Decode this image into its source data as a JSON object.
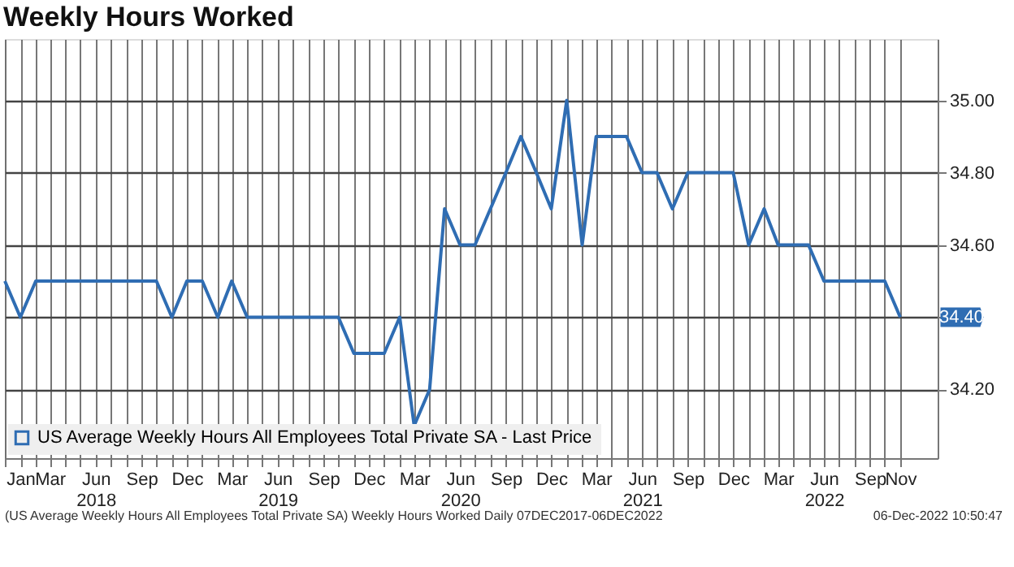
{
  "chart_data": {
    "type": "line",
    "title": "Weekly Hours Worked",
    "x": [
      "2017-12",
      "2018-01",
      "2018-02",
      "2018-03",
      "2018-04",
      "2018-05",
      "2018-06",
      "2018-07",
      "2018-08",
      "2018-09",
      "2018-10",
      "2018-11",
      "2018-12",
      "2019-01",
      "2019-02",
      "2019-03",
      "2019-04",
      "2019-05",
      "2019-06",
      "2019-07",
      "2019-08",
      "2019-09",
      "2019-10",
      "2019-11",
      "2019-12",
      "2020-01",
      "2020-02",
      "2020-03",
      "2020-04",
      "2020-05",
      "2020-06",
      "2020-07",
      "2020-08",
      "2020-09",
      "2020-10",
      "2020-11",
      "2020-12",
      "2021-01",
      "2021-02",
      "2021-03",
      "2021-04",
      "2021-05",
      "2021-06",
      "2021-07",
      "2021-08",
      "2021-09",
      "2021-10",
      "2021-11",
      "2021-12",
      "2022-01",
      "2022-02",
      "2022-03",
      "2022-04",
      "2022-05",
      "2022-06",
      "2022-07",
      "2022-08",
      "2022-09",
      "2022-10",
      "2022-11"
    ],
    "series": [
      {
        "name": "US Average Weekly Hours All Employees Total Private SA - Last Price",
        "color": "#2f6db3",
        "values": [
          34.5,
          34.4,
          34.5,
          34.5,
          34.5,
          34.5,
          34.5,
          34.5,
          34.5,
          34.5,
          34.5,
          34.4,
          34.5,
          34.5,
          34.4,
          34.5,
          34.4,
          34.4,
          34.4,
          34.4,
          34.4,
          34.4,
          34.4,
          34.3,
          34.3,
          34.3,
          34.4,
          34.1,
          34.2,
          34.7,
          34.6,
          34.6,
          34.7,
          34.8,
          34.9,
          34.8,
          34.7,
          35.0,
          34.6,
          34.9,
          34.9,
          34.9,
          34.8,
          34.8,
          34.7,
          34.8,
          34.8,
          34.8,
          34.8,
          34.6,
          34.7,
          34.6,
          34.6,
          34.6,
          34.5,
          34.5,
          34.5,
          34.5,
          34.5,
          34.4
        ]
      }
    ],
    "xlim": [
      "2017-12",
      "2023-01-15"
    ],
    "xticks": [
      {
        "value": "2017-12",
        "label": null
      },
      {
        "value": "2018-01",
        "label": "Jan"
      },
      {
        "value": "2018-02",
        "label": null
      },
      {
        "value": "2018-03",
        "label": "Mar"
      },
      {
        "value": "2018-04",
        "label": null
      },
      {
        "value": "2018-05",
        "label": null
      },
      {
        "value": "2018-06",
        "label": "Jun\n2018"
      },
      {
        "value": "2018-07",
        "label": null
      },
      {
        "value": "2018-08",
        "label": null
      },
      {
        "value": "2018-09",
        "label": "Sep"
      },
      {
        "value": "2018-10",
        "label": null
      },
      {
        "value": "2018-11",
        "label": null
      },
      {
        "value": "2018-12",
        "label": "Dec"
      },
      {
        "value": "2019-01",
        "label": null
      },
      {
        "value": "2019-02",
        "label": null
      },
      {
        "value": "2019-03",
        "label": "Mar"
      },
      {
        "value": "2019-04",
        "label": null
      },
      {
        "value": "2019-05",
        "label": null
      },
      {
        "value": "2019-06",
        "label": "Jun\n2019"
      },
      {
        "value": "2019-07",
        "label": null
      },
      {
        "value": "2019-08",
        "label": null
      },
      {
        "value": "2019-09",
        "label": "Sep"
      },
      {
        "value": "2019-10",
        "label": null
      },
      {
        "value": "2019-11",
        "label": null
      },
      {
        "value": "2019-12",
        "label": "Dec"
      },
      {
        "value": "2020-01",
        "label": null
      },
      {
        "value": "2020-02",
        "label": null
      },
      {
        "value": "2020-03",
        "label": "Mar"
      },
      {
        "value": "2020-04",
        "label": null
      },
      {
        "value": "2020-05",
        "label": null
      },
      {
        "value": "2020-06",
        "label": "Jun\n2020"
      },
      {
        "value": "2020-07",
        "label": null
      },
      {
        "value": "2020-08",
        "label": null
      },
      {
        "value": "2020-09",
        "label": "Sep"
      },
      {
        "value": "2020-10",
        "label": null
      },
      {
        "value": "2020-11",
        "label": null
      },
      {
        "value": "2020-12",
        "label": "Dec"
      },
      {
        "value": "2021-01",
        "label": null
      },
      {
        "value": "2021-02",
        "label": null
      },
      {
        "value": "2021-03",
        "label": "Mar"
      },
      {
        "value": "2021-04",
        "label": null
      },
      {
        "value": "2021-05",
        "label": null
      },
      {
        "value": "2021-06",
        "label": "Jun\n2021"
      },
      {
        "value": "2021-07",
        "label": null
      },
      {
        "value": "2021-08",
        "label": null
      },
      {
        "value": "2021-09",
        "label": "Sep"
      },
      {
        "value": "2021-10",
        "label": null
      },
      {
        "value": "2021-11",
        "label": null
      },
      {
        "value": "2021-12",
        "label": "Dec"
      },
      {
        "value": "2022-01",
        "label": null
      },
      {
        "value": "2022-02",
        "label": null
      },
      {
        "value": "2022-03",
        "label": "Mar"
      },
      {
        "value": "2022-04",
        "label": null
      },
      {
        "value": "2022-05",
        "label": null
      },
      {
        "value": "2022-06",
        "label": "Jun\n2022"
      },
      {
        "value": "2022-07",
        "label": null
      },
      {
        "value": "2022-08",
        "label": null
      },
      {
        "value": "2022-09",
        "label": "Sep"
      },
      {
        "value": "2022-10",
        "label": null
      },
      {
        "value": "2022-11",
        "label": "Nov"
      }
    ],
    "ylim": [
      34.01,
      35.17
    ],
    "yticks": [
      {
        "value": 34.2,
        "label": "34.20"
      },
      {
        "value": 34.4,
        "label": null
      },
      {
        "value": 34.6,
        "label": "34.60"
      },
      {
        "value": 34.8,
        "label": "34.80"
      },
      {
        "value": 35,
        "label": "35.00"
      }
    ],
    "grid": true,
    "legend": "bottom left",
    "annotations": [
      {
        "text": "34.40",
        "x": "2022-11",
        "y": 34.4
      },
      "(US Average Weekly Hours All Employees Total Private SA) Weekly Hours Worked  Daily 07DEC2017-06DEC2022",
      "06-Dec-2022 10:50:47"
    ]
  }
}
